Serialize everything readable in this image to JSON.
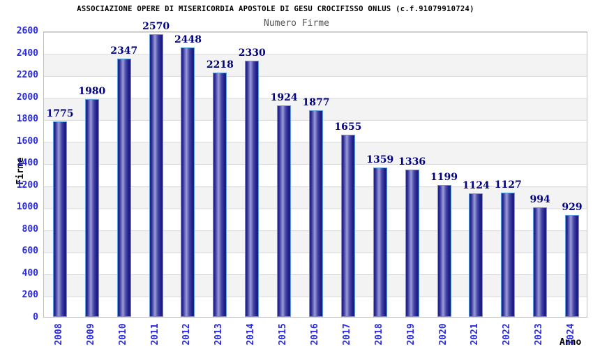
{
  "header": {
    "title": "ASSOCIAZIONE OPERE DI MISERICORDIA APOSTOLE DI GESU CROCIFISSO ONLUS (c.f.91079910724)",
    "subtitle": "Numero Firme"
  },
  "chart_data": {
    "type": "bar",
    "title": "Numero Firme",
    "categories": [
      "2008",
      "2009",
      "2010",
      "2011",
      "2012",
      "2013",
      "2014",
      "2015",
      "2016",
      "2017",
      "2018",
      "2019",
      "2020",
      "2021",
      "2022",
      "2023",
      "2024"
    ],
    "values": [
      1775,
      1980,
      2347,
      2570,
      2448,
      2218,
      2330,
      1924,
      1877,
      1655,
      1359,
      1336,
      1199,
      1124,
      1127,
      994,
      929
    ],
    "xlabel": "Anno",
    "ylabel": "Firme",
    "ylim": [
      0,
      2600
    ],
    "ytick_step": 200,
    "yticks": [
      0,
      200,
      400,
      600,
      800,
      1000,
      1200,
      1400,
      1600,
      1800,
      2000,
      2200,
      2400,
      2600
    ],
    "grid": "horizontal-bands-alternating",
    "legend": "none",
    "colors": {
      "bar_dark": "#1c1c78",
      "bar_mid": "#2d2d96",
      "bar_highlight": "#9c9cd8",
      "bar_border": "#5e9fe0",
      "value_label": "#000082",
      "tick_label": "#2a2ae0",
      "band_gray": "#f3f3f3",
      "band_white": "#ffffff",
      "grid_line": "#d9d9d9",
      "plot_border": "#c0c0c0",
      "title_color": "#000000",
      "subtitle_color": "#555555"
    }
  }
}
